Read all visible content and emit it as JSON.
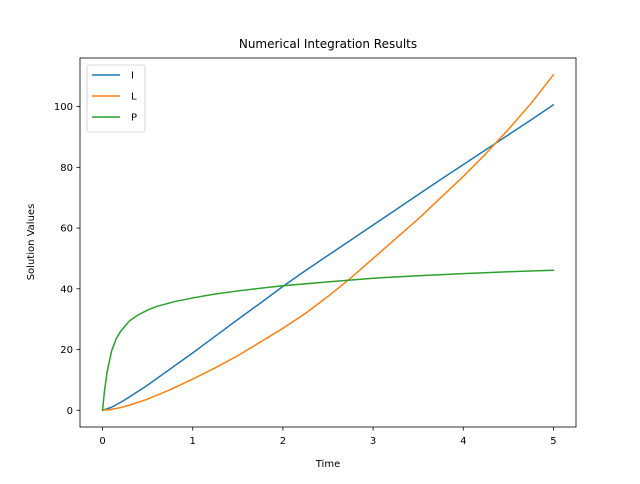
{
  "chart_data": {
    "type": "line",
    "title": "Numerical Integration Results",
    "xlabel": "Time",
    "ylabel": "Solution Values",
    "xlim": [
      -0.25,
      5.25
    ],
    "ylim": [
      -5.5,
      116.0
    ],
    "x_ticks": [
      0,
      1,
      2,
      3,
      4,
      5
    ],
    "y_ticks": [
      0,
      20,
      40,
      60,
      80,
      100
    ],
    "grid": false,
    "legend_position": "top-left",
    "series": [
      {
        "name": "I",
        "color": "#1f77b4",
        "x": [
          0,
          0.1,
          0.2,
          0.3,
          0.5,
          0.75,
          1.0,
          1.25,
          1.5,
          1.75,
          2.0,
          2.25,
          2.5,
          2.75,
          3.0,
          3.25,
          3.5,
          3.75,
          4.0,
          4.25,
          4.5,
          4.75,
          5.0
        ],
        "y": [
          0,
          1.0,
          2.6,
          4.4,
          8.3,
          13.6,
          18.9,
          24.4,
          29.9,
          35.3,
          40.8,
          46.0,
          51.0,
          56.0,
          61.0,
          66.0,
          71.0,
          76.0,
          80.9,
          85.8,
          90.7,
          95.6,
          100.6
        ]
      },
      {
        "name": "L",
        "color": "#ff7f0e",
        "x": [
          0,
          0.1,
          0.2,
          0.3,
          0.5,
          0.75,
          1.0,
          1.25,
          1.5,
          1.75,
          2.0,
          2.25,
          2.5,
          2.75,
          3.0,
          3.25,
          3.5,
          3.75,
          4.0,
          4.25,
          4.5,
          4.75,
          5.0
        ],
        "y": [
          0,
          0.3,
          0.9,
          1.7,
          3.7,
          6.8,
          10.3,
          14.0,
          18.0,
          22.5,
          27.0,
          31.9,
          37.5,
          43.5,
          50.0,
          56.5,
          63.0,
          70.0,
          77.0,
          84.5,
          92.5,
          101.0,
          110.5
        ]
      },
      {
        "name": "P",
        "color": "#2ca02c",
        "x": [
          0,
          0.02,
          0.05,
          0.1,
          0.15,
          0.2,
          0.3,
          0.4,
          0.5,
          0.6,
          0.8,
          1.0,
          1.25,
          1.5,
          1.75,
          2.0,
          2.5,
          3.0,
          3.5,
          4.0,
          4.5,
          5.0
        ],
        "y": [
          0,
          6.0,
          12.5,
          19.5,
          23.5,
          26.0,
          29.5,
          31.5,
          33.0,
          34.2,
          35.8,
          37.0,
          38.3,
          39.3,
          40.2,
          41.0,
          42.3,
          43.5,
          44.3,
          45.0,
          45.6,
          46.1
        ]
      }
    ]
  }
}
